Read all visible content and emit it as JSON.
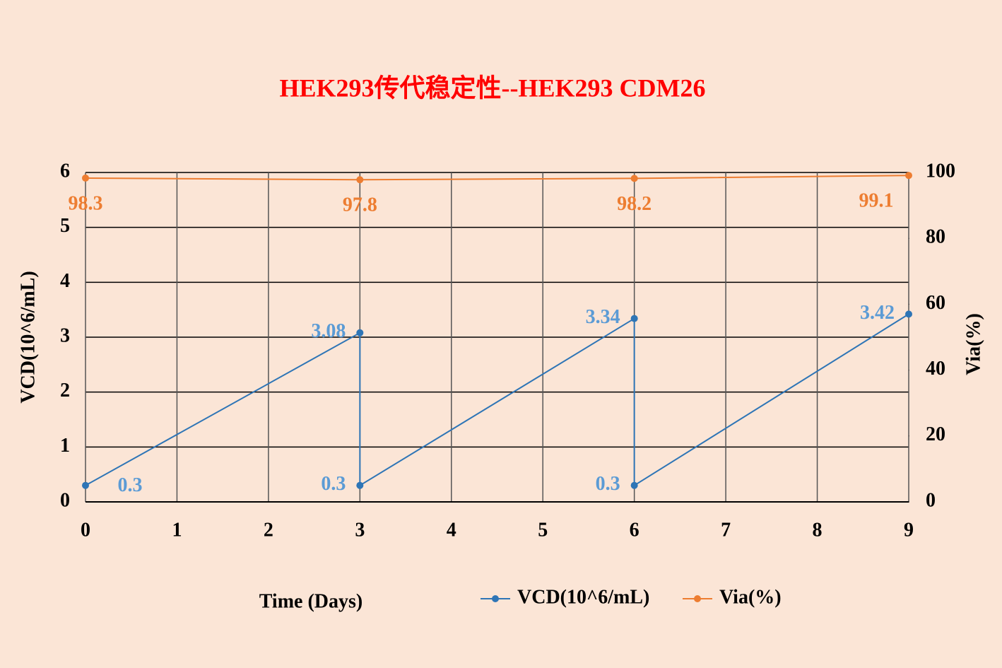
{
  "chart_data": {
    "type": "line",
    "title": "HEK293传代稳定性--HEK293 CDM26",
    "x_label": "Time (Days)",
    "y_label": "VCD(10^6/mL)",
    "y2_label": "Via(%)",
    "xlim": [
      0,
      9
    ],
    "xticks": [
      0,
      1,
      2,
      3,
      4,
      5,
      6,
      7,
      8,
      9
    ],
    "ylim": [
      0,
      6
    ],
    "yticks": [
      0,
      1,
      2,
      3,
      4,
      5,
      6
    ],
    "y2lim": [
      0,
      100
    ],
    "y2ticks": [
      0,
      20,
      40,
      60,
      80,
      100
    ],
    "grid": true,
    "legend": "bottom",
    "series": [
      {
        "name": "VCD(10^6/mL)",
        "color": "#2e75b6",
        "label_color": "#5b9bd5",
        "x": [
          0,
          3,
          3,
          6,
          6,
          9
        ],
        "values": [
          0.3,
          3.08,
          0.3,
          3.34,
          0.3,
          3.42
        ]
      },
      {
        "name": "Via(%)",
        "color": "#ed7d31",
        "label_color": "#ed7d31",
        "axis": "y2",
        "x": [
          0,
          3,
          6,
          9
        ],
        "values": [
          98.3,
          97.8,
          98.2,
          99.1
        ]
      }
    ]
  }
}
